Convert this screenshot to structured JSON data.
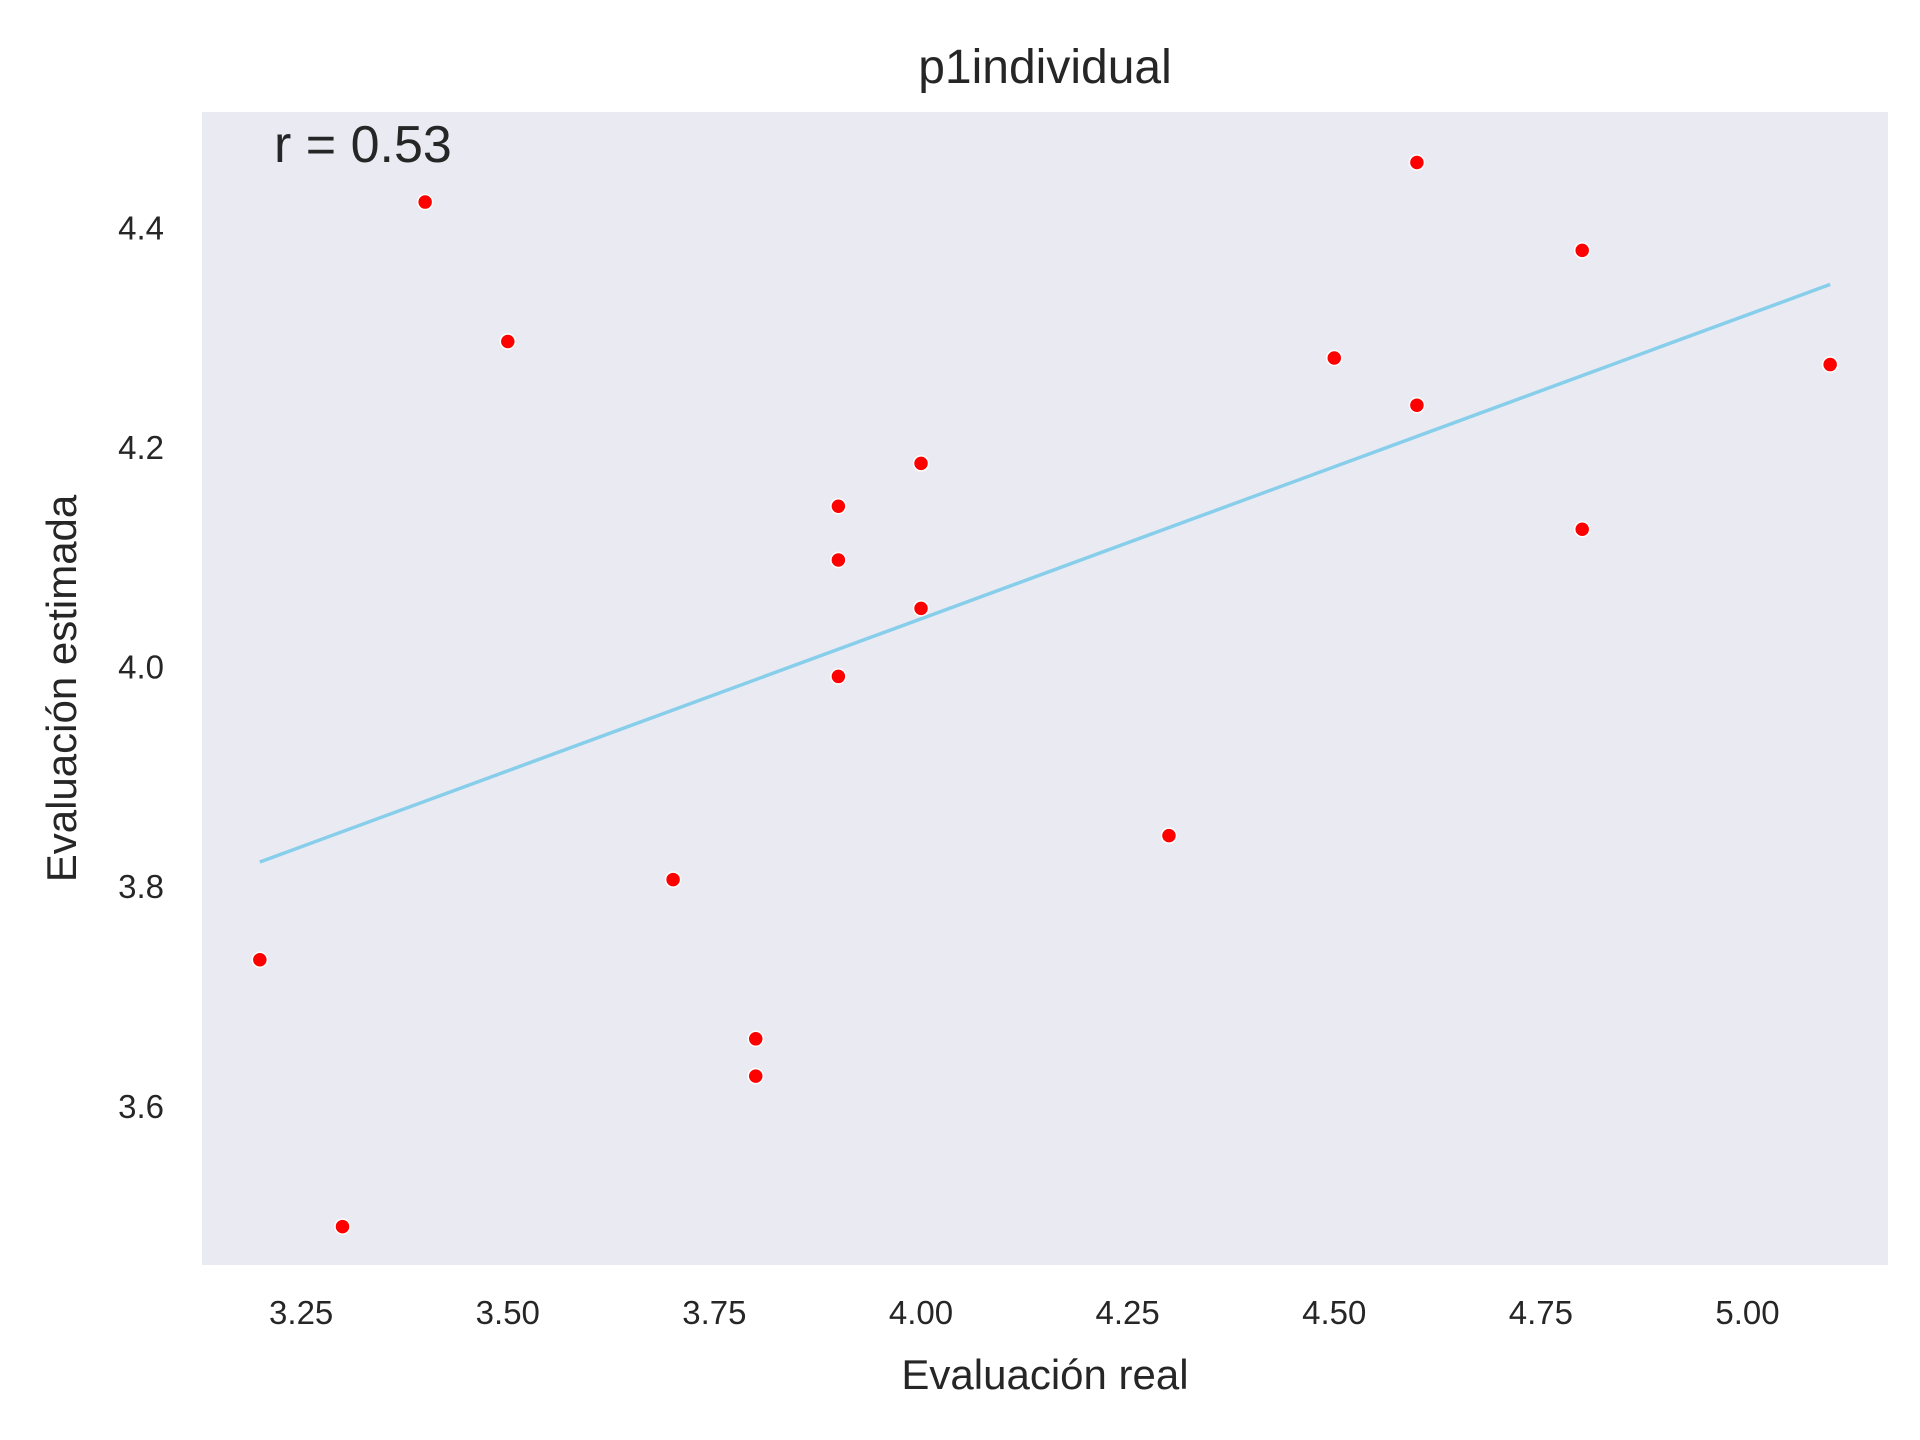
{
  "chart_data": {
    "type": "scatter",
    "title": "p1individual",
    "xlabel": "Evaluación real",
    "ylabel": "Evaluación estimada",
    "annotation": "r = 0.53",
    "xlim": [
      3.13,
      5.17
    ],
    "ylim": [
      3.455,
      4.505
    ],
    "xticks": [
      3.25,
      3.5,
      3.75,
      4.0,
      4.25,
      4.5,
      4.75,
      5.0
    ],
    "xtick_labels": [
      "3.25",
      "3.50",
      "3.75",
      "4.00",
      "4.25",
      "4.50",
      "4.75",
      "5.00"
    ],
    "yticks": [
      3.6,
      3.8,
      4.0,
      4.2,
      4.4
    ],
    "ytick_labels": [
      "3.6",
      "3.8",
      "4.0",
      "4.2",
      "4.4"
    ],
    "grid": false,
    "background_color": "#EAEAF2",
    "point_color": "#FF0000",
    "line_color": "#87CEEB",
    "points": [
      {
        "x": 3.2,
        "y": 3.733
      },
      {
        "x": 3.3,
        "y": 3.49
      },
      {
        "x": 3.4,
        "y": 4.423
      },
      {
        "x": 3.5,
        "y": 4.296
      },
      {
        "x": 3.7,
        "y": 3.806
      },
      {
        "x": 3.8,
        "y": 3.661
      },
      {
        "x": 3.8,
        "y": 3.627
      },
      {
        "x": 3.9,
        "y": 4.146
      },
      {
        "x": 3.9,
        "y": 4.097
      },
      {
        "x": 3.9,
        "y": 3.991
      },
      {
        "x": 4.0,
        "y": 4.185
      },
      {
        "x": 4.0,
        "y": 4.053
      },
      {
        "x": 4.3,
        "y": 3.846
      },
      {
        "x": 4.5,
        "y": 4.281
      },
      {
        "x": 4.6,
        "y": 4.459
      },
      {
        "x": 4.6,
        "y": 4.238
      },
      {
        "x": 4.8,
        "y": 4.379
      },
      {
        "x": 4.8,
        "y": 4.125
      },
      {
        "x": 5.1,
        "y": 4.275
      }
    ],
    "fit_line": {
      "x": [
        3.2,
        5.1
      ],
      "y": [
        3.822,
        4.348
      ]
    }
  }
}
